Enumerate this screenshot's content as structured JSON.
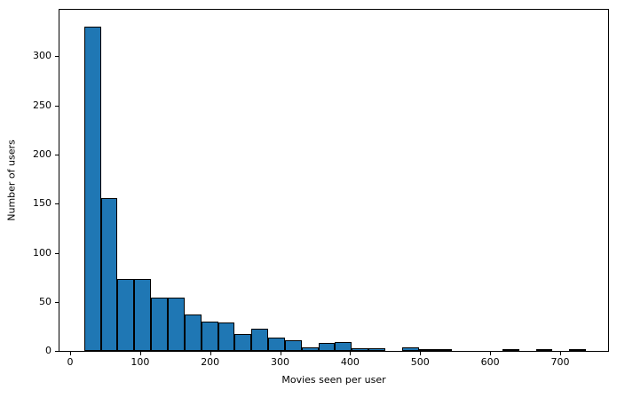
{
  "chart_data": {
    "type": "bar",
    "subtype": "histogram",
    "title": "",
    "xlabel": "Movies seen per user",
    "ylabel": "Number of users",
    "bin_edges": [
      20.0,
      43.9,
      67.8,
      91.7,
      115.6,
      139.5,
      163.4,
      187.3,
      211.2,
      235.1,
      259.0,
      282.9,
      306.8,
      330.7,
      354.6,
      378.5,
      402.4,
      426.3,
      450.2,
      474.1,
      498.0,
      521.9,
      545.8,
      569.7,
      593.6,
      617.5,
      641.4,
      665.3,
      689.2,
      713.1,
      737.0
    ],
    "counts": [
      330,
      156,
      73,
      73,
      54,
      54,
      37,
      30,
      29,
      17,
      23,
      14,
      11,
      4,
      8,
      9,
      3,
      3,
      0,
      4,
      1,
      1,
      0,
      0,
      0,
      1,
      0,
      1,
      0,
      1
    ],
    "x_ticks": [
      0,
      100,
      200,
      300,
      400,
      500,
      600,
      700
    ],
    "y_ticks": [
      0,
      50,
      100,
      150,
      200,
      250,
      300
    ],
    "xlim": [
      -15.2,
      768.5
    ],
    "ylim": [
      0,
      347.5
    ],
    "grid": false,
    "legend": false,
    "bar_color": "#1f77b4",
    "bar_edge_color": "#000000",
    "axis_color": "#000000",
    "text_color": "#000000",
    "background_color": "#ffffff"
  }
}
